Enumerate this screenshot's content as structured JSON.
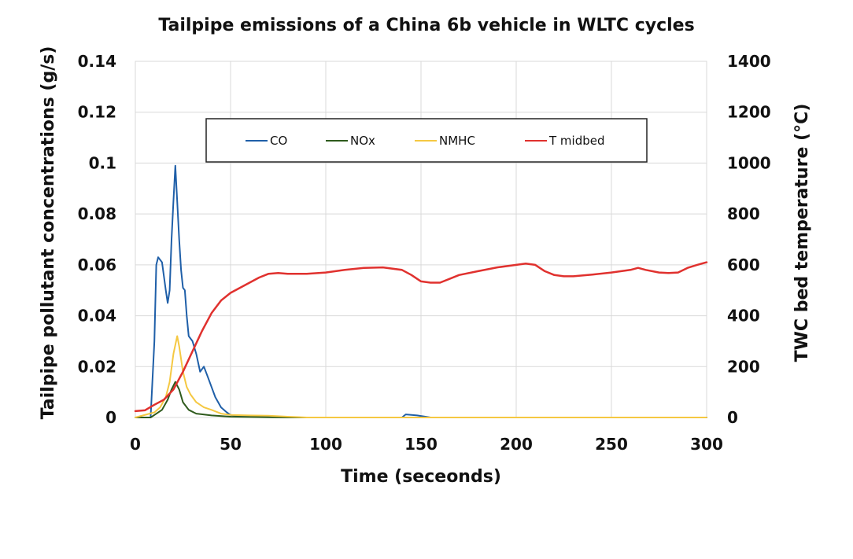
{
  "chart_data": {
    "type": "line",
    "title": "Tailpipe emissions of a China 6b vehicle in WLTC cycles",
    "xlabel": "Time (seceonds)",
    "ylabel_left": "Tailpipe pollutant concentrations (g/s)",
    "ylabel_right": "TWC bed temperature (°C)",
    "xlim": [
      0,
      300
    ],
    "ylim_left": [
      0,
      0.14
    ],
    "ylim_right": [
      0,
      1400
    ],
    "x_ticks": [
      "0",
      "50",
      "100",
      "150",
      "200",
      "250",
      "300"
    ],
    "y_left_ticks": [
      "0",
      "0.02",
      "0.04",
      "0.06",
      "0.08",
      "0.1",
      "0.12",
      "0.14"
    ],
    "y_right_ticks": [
      "0",
      "200",
      "400",
      "600",
      "800",
      "1000",
      "1200",
      "1400"
    ],
    "grid": true,
    "legend_position": "top-center",
    "series": [
      {
        "name": "CO",
        "axis": "left",
        "color": "#1f5fa8",
        "points": [
          [
            0,
            0
          ],
          [
            8,
            0
          ],
          [
            10,
            0.03
          ],
          [
            11,
            0.06
          ],
          [
            12,
            0.063
          ],
          [
            14,
            0.061
          ],
          [
            16,
            0.05
          ],
          [
            17,
            0.045
          ],
          [
            18,
            0.05
          ],
          [
            19,
            0.07
          ],
          [
            20,
            0.085
          ],
          [
            21,
            0.099
          ],
          [
            22,
            0.085
          ],
          [
            23,
            0.07
          ],
          [
            24,
            0.058
          ],
          [
            25,
            0.051
          ],
          [
            26,
            0.05
          ],
          [
            27,
            0.04
          ],
          [
            28,
            0.032
          ],
          [
            30,
            0.03
          ],
          [
            32,
            0.025
          ],
          [
            34,
            0.018
          ],
          [
            36,
            0.02
          ],
          [
            38,
            0.016
          ],
          [
            40,
            0.012
          ],
          [
            42,
            0.008
          ],
          [
            45,
            0.004
          ],
          [
            48,
            0.002
          ],
          [
            50,
            0.001
          ],
          [
            55,
            0.0005
          ],
          [
            60,
            0.0003
          ],
          [
            70,
            0.0002
          ],
          [
            80,
            0
          ],
          [
            140,
            0
          ],
          [
            142,
            0.0012
          ],
          [
            148,
            0.0008
          ],
          [
            155,
            0
          ],
          [
            300,
            0
          ]
        ]
      },
      {
        "name": "NOx",
        "axis": "left",
        "color": "#2e5a1c",
        "points": [
          [
            0,
            0
          ],
          [
            8,
            0
          ],
          [
            10,
            0.001
          ],
          [
            14,
            0.003
          ],
          [
            17,
            0.007
          ],
          [
            19,
            0.011
          ],
          [
            21,
            0.014
          ],
          [
            23,
            0.011
          ],
          [
            25,
            0.006
          ],
          [
            28,
            0.003
          ],
          [
            32,
            0.0015
          ],
          [
            40,
            0.0008
          ],
          [
            50,
            0.0003
          ],
          [
            60,
            0.0002
          ],
          [
            70,
            0.0001
          ],
          [
            80,
            0
          ],
          [
            300,
            0
          ]
        ]
      },
      {
        "name": "NMHC",
        "axis": "left",
        "color": "#f5c842",
        "points": [
          [
            0,
            0
          ],
          [
            10,
            0.002
          ],
          [
            13,
            0.004
          ],
          [
            16,
            0.008
          ],
          [
            18,
            0.014
          ],
          [
            20,
            0.025
          ],
          [
            22,
            0.032
          ],
          [
            23,
            0.028
          ],
          [
            25,
            0.018
          ],
          [
            27,
            0.012
          ],
          [
            29,
            0.009
          ],
          [
            32,
            0.006
          ],
          [
            36,
            0.004
          ],
          [
            40,
            0.003
          ],
          [
            45,
            0.0015
          ],
          [
            50,
            0.001
          ],
          [
            60,
            0.0008
          ],
          [
            70,
            0.0007
          ],
          [
            75,
            0.0005
          ],
          [
            80,
            0.0003
          ],
          [
            90,
            0
          ],
          [
            300,
            0
          ]
        ]
      },
      {
        "name": "T midbed",
        "axis": "right",
        "color": "#e0312e",
        "points": [
          [
            0,
            25
          ],
          [
            5,
            28
          ],
          [
            10,
            50
          ],
          [
            15,
            70
          ],
          [
            20,
            110
          ],
          [
            25,
            180
          ],
          [
            30,
            260
          ],
          [
            35,
            340
          ],
          [
            40,
            410
          ],
          [
            45,
            460
          ],
          [
            50,
            490
          ],
          [
            55,
            510
          ],
          [
            60,
            530
          ],
          [
            65,
            550
          ],
          [
            70,
            565
          ],
          [
            75,
            568
          ],
          [
            80,
            565
          ],
          [
            90,
            565
          ],
          [
            100,
            570
          ],
          [
            110,
            580
          ],
          [
            120,
            588
          ],
          [
            130,
            590
          ],
          [
            140,
            580
          ],
          [
            145,
            560
          ],
          [
            150,
            535
          ],
          [
            155,
            530
          ],
          [
            160,
            530
          ],
          [
            165,
            545
          ],
          [
            170,
            560
          ],
          [
            180,
            575
          ],
          [
            190,
            590
          ],
          [
            200,
            600
          ],
          [
            205,
            605
          ],
          [
            210,
            600
          ],
          [
            215,
            575
          ],
          [
            220,
            560
          ],
          [
            225,
            555
          ],
          [
            230,
            555
          ],
          [
            240,
            562
          ],
          [
            250,
            570
          ],
          [
            260,
            580
          ],
          [
            264,
            588
          ],
          [
            268,
            580
          ],
          [
            275,
            570
          ],
          [
            280,
            568
          ],
          [
            285,
            570
          ],
          [
            290,
            588
          ],
          [
            295,
            600
          ],
          [
            300,
            610
          ]
        ]
      }
    ]
  }
}
